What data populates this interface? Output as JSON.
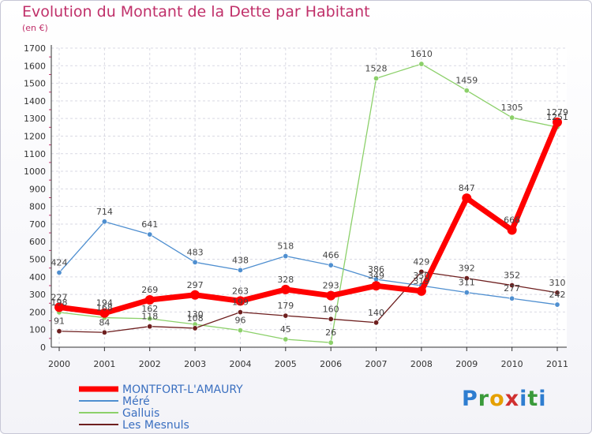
{
  "chart_data": {
    "type": "line",
    "title": "Evolution du Montant de la Dette par Habitant",
    "subtitle": "(en €)",
    "xlabel": "",
    "ylabel": "",
    "x": [
      "2000",
      "2001",
      "2002",
      "2003",
      "2004",
      "2005",
      "2006",
      "2007",
      "2008",
      "2009",
      "2010",
      "2011"
    ],
    "ylim": [
      0,
      1700
    ],
    "yticks": [
      0,
      100,
      200,
      300,
      400,
      500,
      600,
      700,
      800,
      900,
      1000,
      1100,
      1200,
      1300,
      1400,
      1500,
      1600,
      1700
    ],
    "grid": true,
    "legend_position": "bottom-left",
    "series": [
      {
        "name": "MONTFORT-L'AMAURY",
        "color": "#ff0000",
        "values": [
          227,
          194,
          269,
          297,
          263,
          328,
          293,
          349,
          319,
          847,
          666,
          1279
        ]
      },
      {
        "name": "Méré",
        "color": "#4f8fd0",
        "values": [
          424,
          714,
          641,
          483,
          438,
          518,
          466,
          386,
          350,
          311,
          277,
          242
        ]
      },
      {
        "name": "Galluis",
        "color": "#8cd06a",
        "values": [
          198,
          168,
          162,
          130,
          96,
          45,
          26,
          1528,
          1610,
          1459,
          1305,
          1251
        ]
      },
      {
        "name": "Les Mesnuls",
        "color": "#6e1f1f",
        "values": [
          91,
          84,
          118,
          108,
          199,
          179,
          160,
          140,
          429,
          392,
          352,
          310
        ]
      }
    ]
  },
  "logo": {
    "p": "P",
    "r": "r",
    "o": "o",
    "x": "x",
    "i": "i",
    "t": "t",
    "i2": "i"
  }
}
